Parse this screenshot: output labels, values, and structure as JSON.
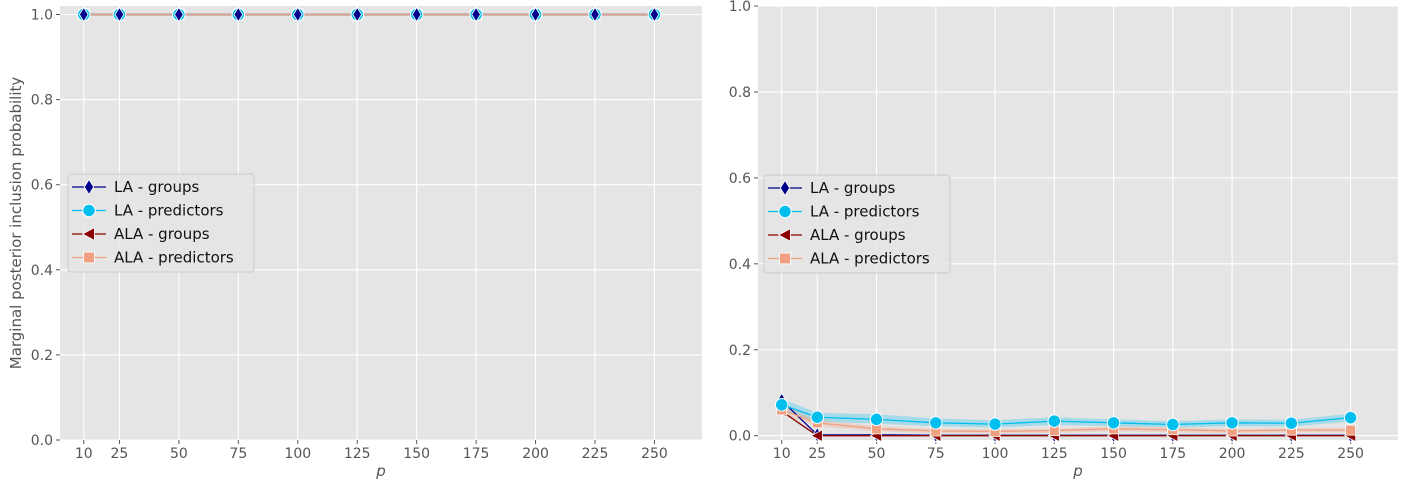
{
  "chart_data": [
    {
      "type": "line",
      "title": "",
      "xlabel": "p",
      "ylabel": "Marginal posterior inclusion probability",
      "x": [
        10,
        25,
        50,
        75,
        100,
        125,
        150,
        175,
        200,
        225,
        250
      ],
      "xticks": [
        10,
        25,
        50,
        75,
        100,
        125,
        150,
        175,
        200,
        225,
        250
      ],
      "ylim": [
        0.0,
        1.02
      ],
      "yticks": [
        0.0,
        0.2,
        0.4,
        0.6,
        0.8,
        1.0
      ],
      "ytick_labels": [
        "0.0",
        "0.2",
        "0.4",
        "0.6",
        "0.8",
        "1.0"
      ],
      "grid": true,
      "legend_position": "center-left",
      "series": [
        {
          "name": "LA - groups",
          "color": "#00008b",
          "marker": "diamond",
          "values": [
            1,
            1,
            1,
            1,
            1,
            1,
            1,
            1,
            1,
            1,
            1
          ]
        },
        {
          "name": "LA - predictors",
          "color": "#00bfef",
          "marker": "circle",
          "values": [
            1,
            1,
            1,
            1,
            1,
            1,
            1,
            1,
            1,
            1,
            1
          ]
        },
        {
          "name": "ALA - groups",
          "color": "#8b0000",
          "marker": "triangle-left",
          "values": [
            1,
            1,
            1,
            1,
            1,
            1,
            1,
            1,
            1,
            1,
            1
          ]
        },
        {
          "name": "ALA - predictors",
          "color": "#f0a080",
          "marker": "square",
          "values": [
            1,
            1,
            1,
            1,
            1,
            1,
            1,
            1,
            1,
            1,
            1
          ]
        }
      ]
    },
    {
      "type": "line",
      "title": "",
      "xlabel": "p",
      "ylabel": "",
      "x": [
        10,
        25,
        50,
        75,
        100,
        125,
        150,
        175,
        200,
        225,
        250
      ],
      "xticks": [
        10,
        25,
        50,
        75,
        100,
        125,
        150,
        175,
        200,
        225,
        250
      ],
      "ylim": [
        -0.01,
        1.0
      ],
      "yticks": [
        0.0,
        0.2,
        0.4,
        0.6,
        0.8,
        1.0
      ],
      "ytick_labels": [
        "0.0",
        "0.2",
        "0.4",
        "0.6",
        "0.8",
        "1.0"
      ],
      "grid": true,
      "legend_position": "center-left",
      "series": [
        {
          "name": "LA - groups",
          "color": "#00008b",
          "marker": "diamond",
          "values": [
            0.082,
            0.002,
            0.002,
            0.001,
            0.001,
            0.001,
            0.001,
            0.001,
            0.001,
            0.001,
            0.001
          ]
        },
        {
          "name": "LA - predictors",
          "color": "#00bfef",
          "marker": "circle",
          "values": [
            0.072,
            0.043,
            0.038,
            0.03,
            0.027,
            0.034,
            0.03,
            0.026,
            0.03,
            0.029,
            0.042
          ],
          "band_low": [
            0.058,
            0.033,
            0.028,
            0.022,
            0.019,
            0.025,
            0.022,
            0.019,
            0.022,
            0.021,
            0.033
          ],
          "band_high": [
            0.086,
            0.053,
            0.05,
            0.04,
            0.036,
            0.043,
            0.038,
            0.034,
            0.038,
            0.037,
            0.051
          ]
        },
        {
          "name": "ALA - groups",
          "color": "#8b0000",
          "marker": "triangle-left",
          "values": [
            0.057,
            0.0,
            0.0,
            0.0,
            0.0,
            0.0,
            0.0,
            0.0,
            0.0,
            0.0,
            0.0
          ]
        },
        {
          "name": "ALA - predictors",
          "color": "#f0a080",
          "marker": "square",
          "values": [
            0.06,
            0.03,
            0.016,
            0.011,
            0.01,
            0.012,
            0.016,
            0.014,
            0.011,
            0.013,
            0.013
          ],
          "band_low": [
            0.048,
            0.022,
            0.01,
            0.006,
            0.005,
            0.007,
            0.01,
            0.008,
            0.006,
            0.008,
            0.008
          ],
          "band_high": [
            0.072,
            0.038,
            0.022,
            0.016,
            0.015,
            0.017,
            0.022,
            0.02,
            0.016,
            0.018,
            0.018
          ]
        }
      ]
    }
  ]
}
